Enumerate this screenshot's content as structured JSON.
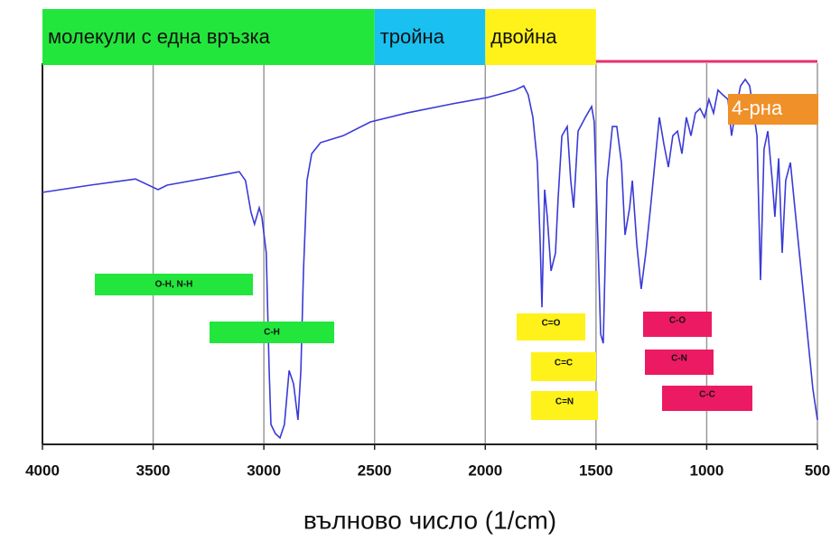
{
  "chart_data": {
    "type": "line",
    "x_label": "вълново число (1/cm)",
    "xlim": [
      4000,
      500
    ],
    "xticks": [
      4000,
      3500,
      3000,
      2500,
      2000,
      1500,
      1000,
      500
    ],
    "ylim": [
      0,
      100
    ],
    "grid": true,
    "regions": [
      {
        "label": "молекули с една връзка",
        "color": "#22e63c",
        "x_range": [
          4000,
          2500
        ]
      },
      {
        "label": "тройна",
        "color": "#19c0f0",
        "x_range": [
          2500,
          2000
        ]
      },
      {
        "label": "двойна",
        "color": "#fff21a",
        "x_range": [
          2000,
          1500
        ]
      },
      {
        "color": "#e8306a",
        "x_range": [
          1500,
          500
        ]
      }
    ],
    "annotations": [
      {
        "text": "O-H, N-H",
        "color": "#22e63c"
      },
      {
        "text": "C-H",
        "color": "#22e63c"
      },
      {
        "text": "C=O",
        "color": "#fff21a"
      },
      {
        "text": "C=C",
        "color": "#fff21a"
      },
      {
        "text": "C=N",
        "color": "#fff21a"
      },
      {
        "text": "C-O",
        "color": "#ec1a62"
      },
      {
        "text": "C-N",
        "color": "#ec1a62"
      },
      {
        "text": "C-C",
        "color": "#ec1a62"
      },
      {
        "text": "4-рна",
        "color": "#f09028"
      }
    ],
    "series": [
      {
        "color": "#3a3ad8",
        "x": [
          4000,
          3784,
          3580,
          3478,
          3437,
          3254,
          3111,
          3083,
          3058,
          3042,
          3021,
          3009,
          2989,
          2976,
          2968,
          2948,
          2927,
          2907,
          2886,
          2866,
          2846,
          2833,
          2821,
          2805,
          2784,
          2744,
          2642,
          2519,
          2356,
          2152,
          1989,
          1867,
          1826,
          1806,
          1785,
          1765,
          1752,
          1744,
          1732,
          1720,
          1703,
          1683,
          1671,
          1654,
          1630,
          1614,
          1601,
          1581,
          1548,
          1520,
          1508,
          1491,
          1479,
          1467,
          1450,
          1426,
          1406,
          1385,
          1369,
          1348,
          1336,
          1316,
          1296,
          1275,
          1254,
          1234,
          1214,
          1193,
          1173,
          1153,
          1132,
          1112,
          1092,
          1071,
          1051,
          1030,
          1010,
          990,
          969,
          949,
          928,
          904,
          888,
          867,
          847,
          826,
          806,
          773,
          757,
          741,
          724,
          704,
          692,
          675,
          659,
          643,
          622,
          602,
          561,
          521,
          500
        ],
        "values": [
          65.8,
          67.7,
          69.3,
          66.5,
          67.7,
          69.6,
          71.2,
          68.9,
          60.6,
          57.5,
          61.8,
          59.4,
          50.0,
          19.3,
          5.2,
          2.8,
          1.7,
          5.2,
          19.3,
          15.8,
          6.4,
          19.3,
          45.3,
          68.9,
          75.9,
          78.8,
          80.6,
          84.2,
          86.5,
          88.9,
          90.6,
          92.5,
          93.6,
          91.3,
          85.4,
          73.6,
          52.3,
          35.8,
          66.5,
          59.4,
          45.3,
          50.0,
          64.1,
          80.6,
          83.0,
          68.9,
          61.8,
          81.8,
          85.4,
          88.2,
          84.2,
          52.3,
          28.8,
          26.4,
          68.9,
          83.0,
          83.0,
          73.6,
          54.7,
          61.8,
          68.9,
          52.3,
          40.6,
          50.0,
          61.8,
          73.6,
          85.4,
          78.3,
          72.4,
          80.6,
          81.8,
          75.9,
          85.4,
          80.6,
          86.5,
          87.7,
          85.4,
          90.1,
          86.5,
          92.5,
          91.3,
          90.1,
          80.6,
          87.7,
          93.6,
          95.3,
          93.6,
          80.6,
          42.9,
          77.1,
          81.8,
          68.9,
          59.4,
          74.7,
          50.0,
          68.9,
          73.6,
          61.8,
          38.2,
          14.6,
          6.4
        ]
      }
    ]
  }
}
